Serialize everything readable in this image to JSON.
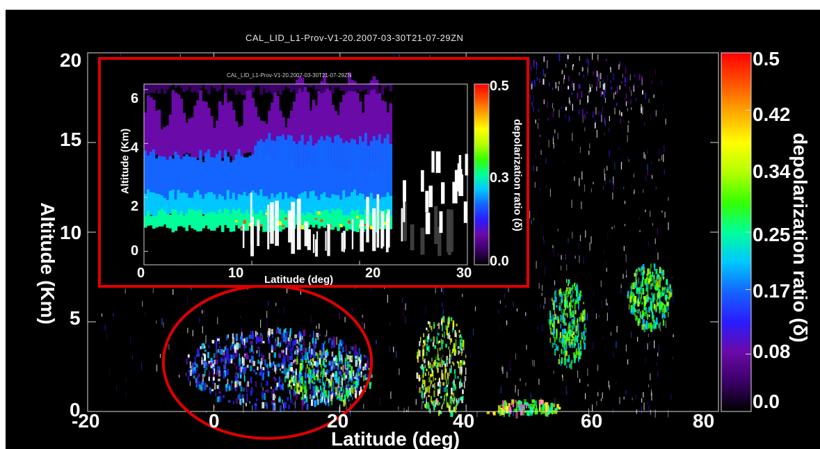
{
  "chart_data": [
    {
      "type": "heatmap",
      "title": "CAL_LID_L1-Prov-V1-20.2007-03-30T21-07-29ZN",
      "xlabel": "Latitude (deg)",
      "ylabel": "Altitude (Km)",
      "xlim": [
        -20,
        80
      ],
      "ylim": [
        0,
        20
      ],
      "x_ticks": [
        "-20",
        "0",
        "20",
        "40",
        "60",
        "80"
      ],
      "y_ticks": [
        "0",
        "5",
        "10",
        "15",
        "20"
      ],
      "colorbar": {
        "label": "depolarization ratio (δ)",
        "range": [
          0.0,
          0.5
        ],
        "ticks": [
          "0.0",
          "0.08",
          "0.17",
          "0.25",
          "0.34",
          "0.42",
          "0.5"
        ]
      },
      "highlight": {
        "shape": "ellipse",
        "color": "#e00000",
        "x_range": [
          -8,
          25
        ],
        "y_range": [
          -1.5,
          7
        ]
      }
    },
    {
      "type": "heatmap",
      "title": "CAL_LID_L1-Prov-V1-20.2007-03-30T21-07-29ZN",
      "xlabel": "Latitude (deg)",
      "ylabel": "Altitude (Km)",
      "xlim": [
        0,
        30
      ],
      "ylim": [
        -0.5,
        6.2
      ],
      "x_ticks": [
        "0",
        "10",
        "20",
        "30"
      ],
      "y_ticks": [
        "0",
        "2",
        "4",
        "6"
      ],
      "colorbar": {
        "label": "depolarization ratio (δ)",
        "range": [
          0.0,
          0.5
        ],
        "ticks": [
          "0.0",
          "0.3",
          "0.5"
        ]
      },
      "frame_color": "#e00000"
    }
  ],
  "colors": {
    "background": "#000000",
    "highlight": "#e00000",
    "colormap": [
      "#000000",
      "#3a0066",
      "#6a0aa8",
      "#2a1cff",
      "#1464ff",
      "#00c8ff",
      "#00ff9a",
      "#36ff00",
      "#b4ff00",
      "#ffff00",
      "#ffaa00",
      "#ff5000",
      "#ff0000"
    ]
  }
}
